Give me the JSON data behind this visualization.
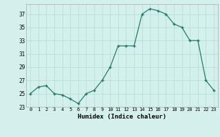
{
  "x": [
    0,
    1,
    2,
    3,
    4,
    5,
    6,
    7,
    8,
    9,
    10,
    11,
    12,
    13,
    14,
    15,
    16,
    17,
    18,
    19,
    20,
    21,
    22,
    23
  ],
  "y": [
    25,
    26,
    26.2,
    25,
    24.8,
    24.2,
    23.5,
    25,
    25.5,
    27,
    29,
    32.2,
    32.2,
    32.2,
    37,
    37.8,
    37.5,
    37,
    35.5,
    35,
    33,
    33,
    27,
    25.5
  ],
  "line_color": "#1f7a6e",
  "marker_color": "#1f7a6e",
  "bg_color": "#d4f0ec",
  "grid_color": "#b8ddd9",
  "xlabel": "Humidex (Indice chaleur)",
  "xlim": [
    -0.5,
    23.5
  ],
  "ylim": [
    23,
    38.5
  ],
  "yticks": [
    23,
    25,
    27,
    29,
    31,
    33,
    35,
    37
  ],
  "xticks": [
    0,
    1,
    2,
    3,
    4,
    5,
    6,
    7,
    8,
    9,
    10,
    11,
    12,
    13,
    14,
    15,
    16,
    17,
    18,
    19,
    20,
    21,
    22,
    23
  ]
}
